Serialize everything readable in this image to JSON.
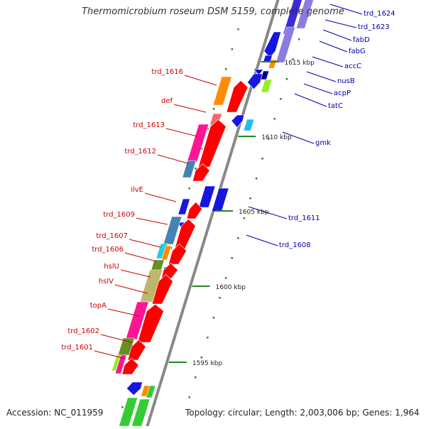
{
  "title": "Thermomicrobium roseum DSM 5159, complete genome",
  "footer": {
    "accession": "Accession: NC_011959",
    "topology": "Topology: circular; Length: 2,003,006 bp; Genes: 1,964"
  },
  "colors": {
    "left_label": "#cc0000",
    "right_label": "#0000aa",
    "axis": "#888888",
    "tick": "#228822",
    "forward_gene": "#ff0000",
    "reverse_gene": "#0000ff"
  },
  "scale_labels": [
    "1615 kbp",
    "1610 kbp",
    "1605 kbp",
    "1600 kbp",
    "1595 kbp"
  ],
  "left_labels": [
    "trd_1616",
    "def",
    "trd_1613",
    "trd_1612",
    "ilvE",
    "trd_1609",
    "trd_1607",
    "trd_1606",
    "hslU",
    "hslV",
    "topA",
    "trd_1602",
    "trd_1601"
  ],
  "right_labels": [
    "trd_1624",
    "trd_1623",
    "fabD",
    "fabG",
    "accC",
    "nusB",
    "acpP",
    "tatC",
    "gmk",
    "trd_1611",
    "trd_1608"
  ]
}
